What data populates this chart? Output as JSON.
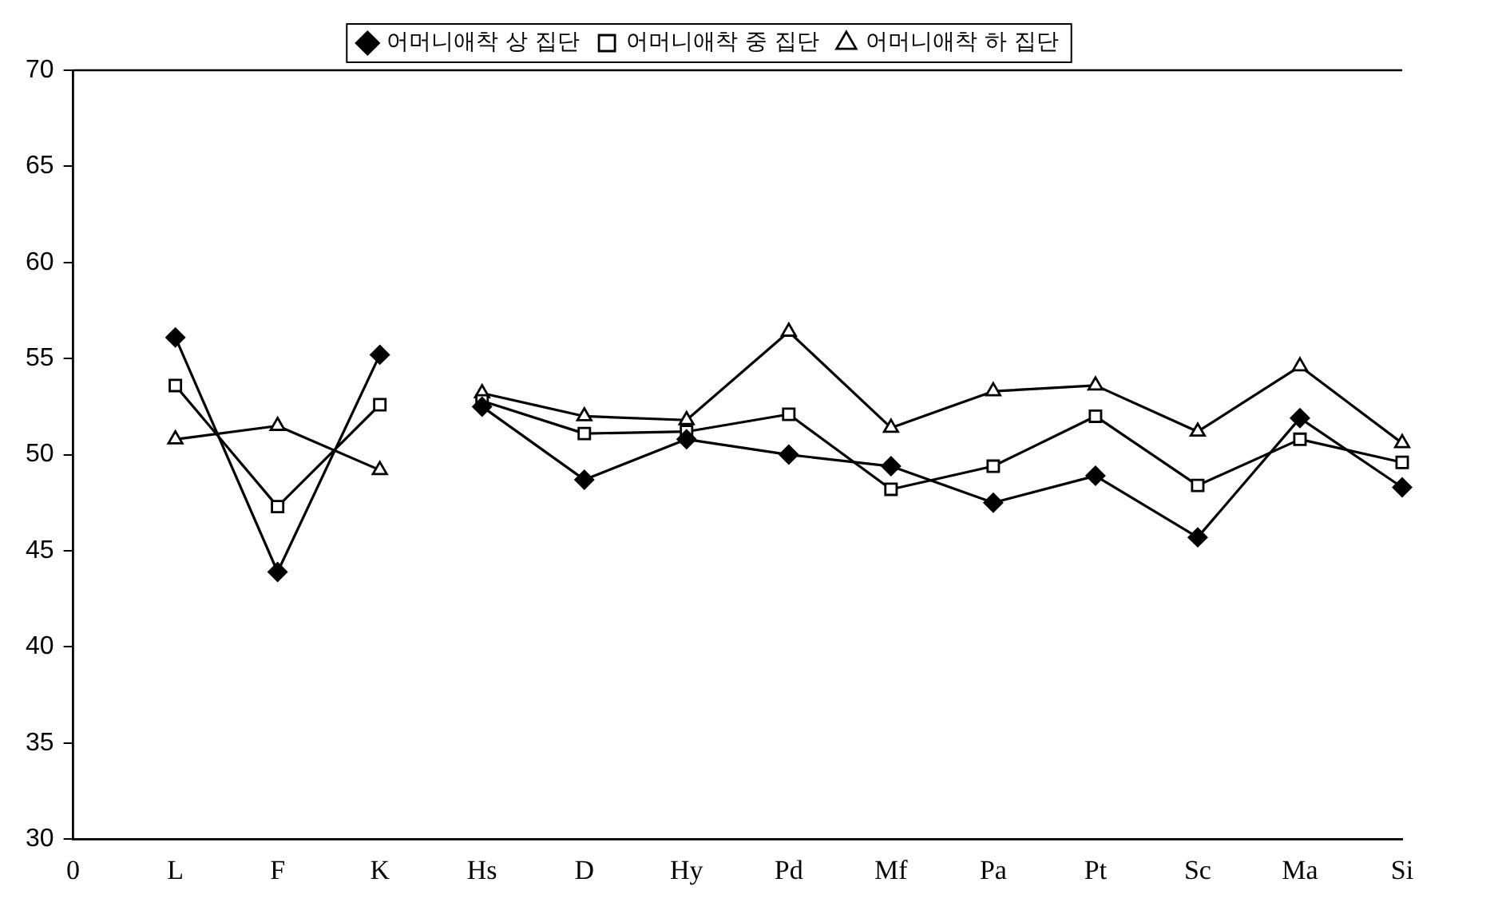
{
  "chart_data": {
    "type": "line",
    "legend": "top",
    "line_style": "solid",
    "grid": false,
    "categories": [
      "0",
      "L",
      "F",
      "K",
      "Hs",
      "D",
      "Hy",
      "Pd",
      "Mf",
      "Pa",
      "Pt",
      "Sc",
      "Ma",
      "Si"
    ],
    "ylim": [
      30,
      70
    ],
    "yticks": [
      30,
      35,
      40,
      45,
      50,
      55,
      60,
      65,
      70
    ],
    "series": [
      {
        "name": "어머니애착 상 집단",
        "color": "#000000",
        "marker": "diamond",
        "values": [
          null,
          56.1,
          43.9,
          55.2,
          null,
          null,
          null,
          null,
          null,
          null,
          null,
          null,
          null,
          null
        ]
      },
      {
        "name": "어머니애착 중 집단",
        "color": "#000000",
        "marker": "square",
        "values": [
          null,
          53.6,
          47.3,
          52.6,
          null,
          null,
          null,
          null,
          null,
          null,
          null,
          null,
          null,
          null
        ]
      },
      {
        "name": "어머니애착 하 집단",
        "color": "#000000",
        "marker": "triangle",
        "values": [
          null,
          50.8,
          51.5,
          49.2,
          null,
          null,
          null,
          null,
          null,
          null,
          null,
          null,
          null,
          null
        ]
      },
      {
        "color": "#000000",
        "marker": "diamond",
        "values": [
          null,
          null,
          null,
          null,
          52.5,
          48.7,
          50.8,
          50.0,
          49.4,
          47.5,
          48.9,
          45.7,
          51.9,
          48.3
        ]
      },
      {
        "color": "#000000",
        "marker": "square",
        "values": [
          null,
          null,
          null,
          null,
          52.8,
          51.1,
          51.2,
          52.1,
          48.2,
          49.4,
          52.0,
          48.4,
          50.8,
          49.6
        ]
      },
      {
        "color": "#000000",
        "marker": "triangle",
        "values": [
          null,
          null,
          null,
          null,
          53.2,
          52.0,
          51.8,
          56.4,
          51.4,
          53.3,
          53.6,
          51.2,
          54.6,
          50.6
        ]
      }
    ]
  }
}
